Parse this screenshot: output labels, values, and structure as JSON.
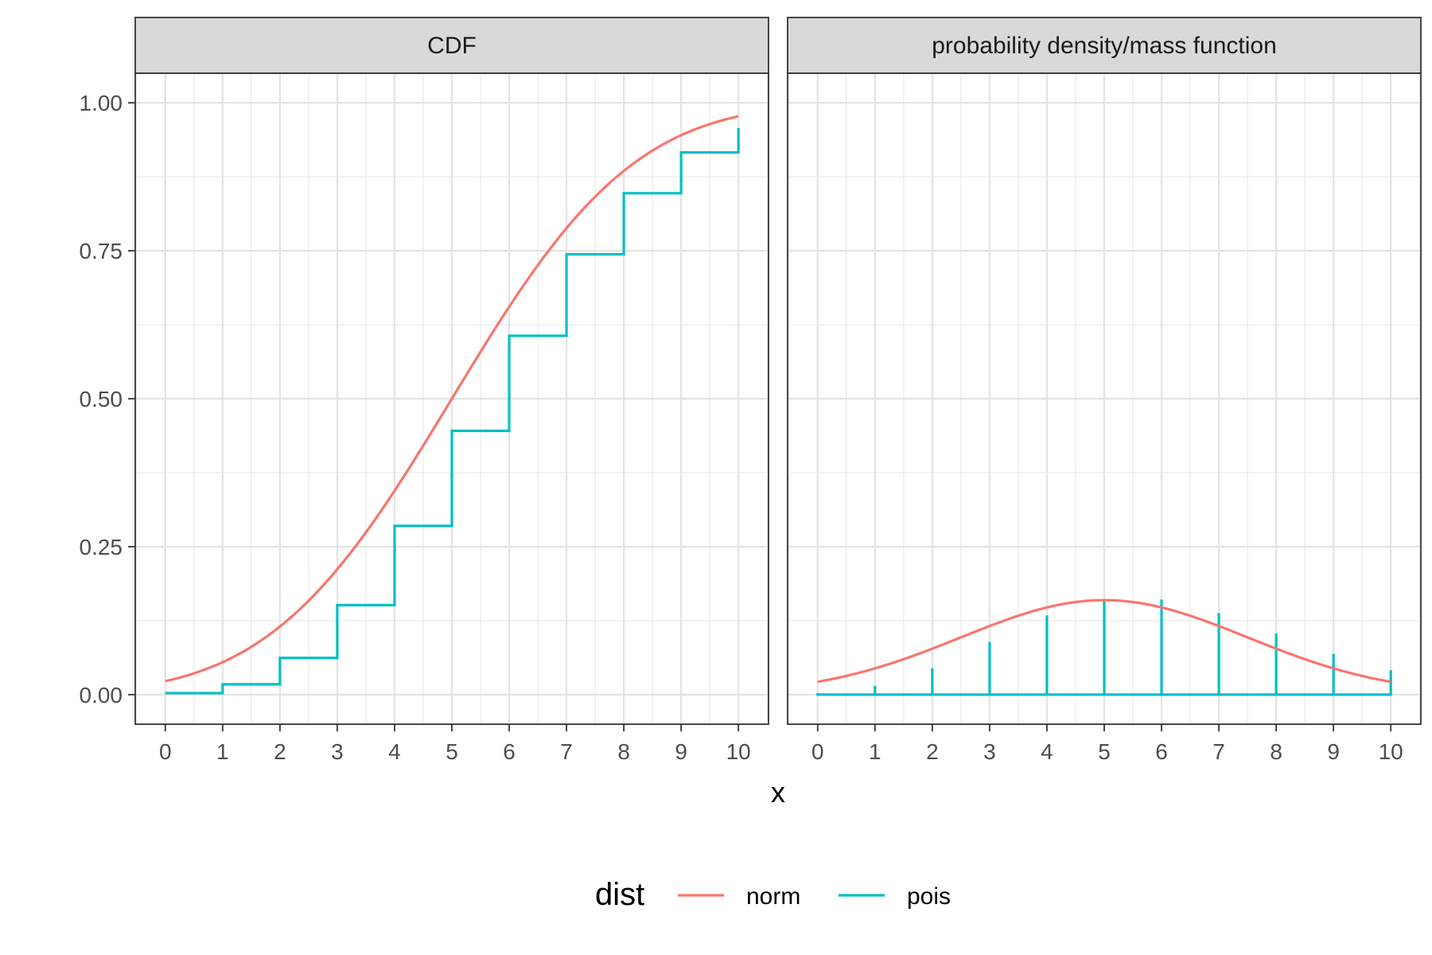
{
  "chart_data": {
    "type": "line",
    "facet_labels": [
      "CDF",
      "probability density/mass function"
    ],
    "xlabel": "x",
    "ylabel": "",
    "xlim": [
      0,
      10
    ],
    "ylim": [
      0,
      1
    ],
    "x_ticks": [
      0,
      1,
      2,
      3,
      4,
      5,
      6,
      7,
      8,
      9,
      10
    ],
    "y_ticks": [
      0,
      0.25,
      0.5,
      0.75,
      1
    ],
    "y_tick_labels": [
      "0.00",
      "0.25",
      "0.50",
      "0.75",
      "1.00"
    ],
    "grid": true,
    "legend": {
      "title": "dist",
      "position": "bottom",
      "entries": [
        {
          "name": "norm",
          "color": "#F8766D"
        },
        {
          "name": "pois",
          "color": "#00BFC4"
        }
      ]
    },
    "series": [
      {
        "name": "norm",
        "color": "#F8766D",
        "distribution": {
          "family": "normal",
          "mean": 5,
          "sd": 2.5
        },
        "panels": {
          "CDF": {
            "x": [
              0,
              1,
              2,
              3,
              4,
              5,
              6,
              7,
              8,
              9,
              10
            ],
            "y": [
              0.023,
              0.055,
              0.115,
              0.212,
              0.345,
              0.5,
              0.655,
              0.788,
              0.885,
              0.945,
              0.977
            ]
          },
          "probability density/mass function": {
            "x": [
              0,
              1,
              2,
              3,
              4,
              5,
              6,
              7,
              8,
              9,
              10
            ],
            "y": [
              0.0216,
              0.0444,
              0.0777,
              0.1158,
              0.1473,
              0.1596,
              0.1473,
              0.1158,
              0.0777,
              0.0444,
              0.0216
            ]
          }
        }
      },
      {
        "name": "pois",
        "color": "#00BFC4",
        "distribution": {
          "family": "poisson",
          "lambda": 6
        },
        "panels": {
          "CDF": {
            "x": [
              0,
              1,
              2,
              3,
              4,
              5,
              6,
              7,
              8,
              9,
              10
            ],
            "y": [
              0.0025,
              0.0174,
              0.062,
              0.1512,
              0.2851,
              0.4457,
              0.6063,
              0.744,
              0.8472,
              0.9161,
              0.9574
            ]
          },
          "probability density/mass function": {
            "x": [
              0,
              1,
              2,
              3,
              4,
              5,
              6,
              7,
              8,
              9,
              10
            ],
            "y": [
              0.0025,
              0.0149,
              0.0446,
              0.0892,
              0.1339,
              0.1606,
              0.1606,
              0.1377,
              0.1033,
              0.0688,
              0.0413
            ]
          }
        }
      }
    ]
  }
}
